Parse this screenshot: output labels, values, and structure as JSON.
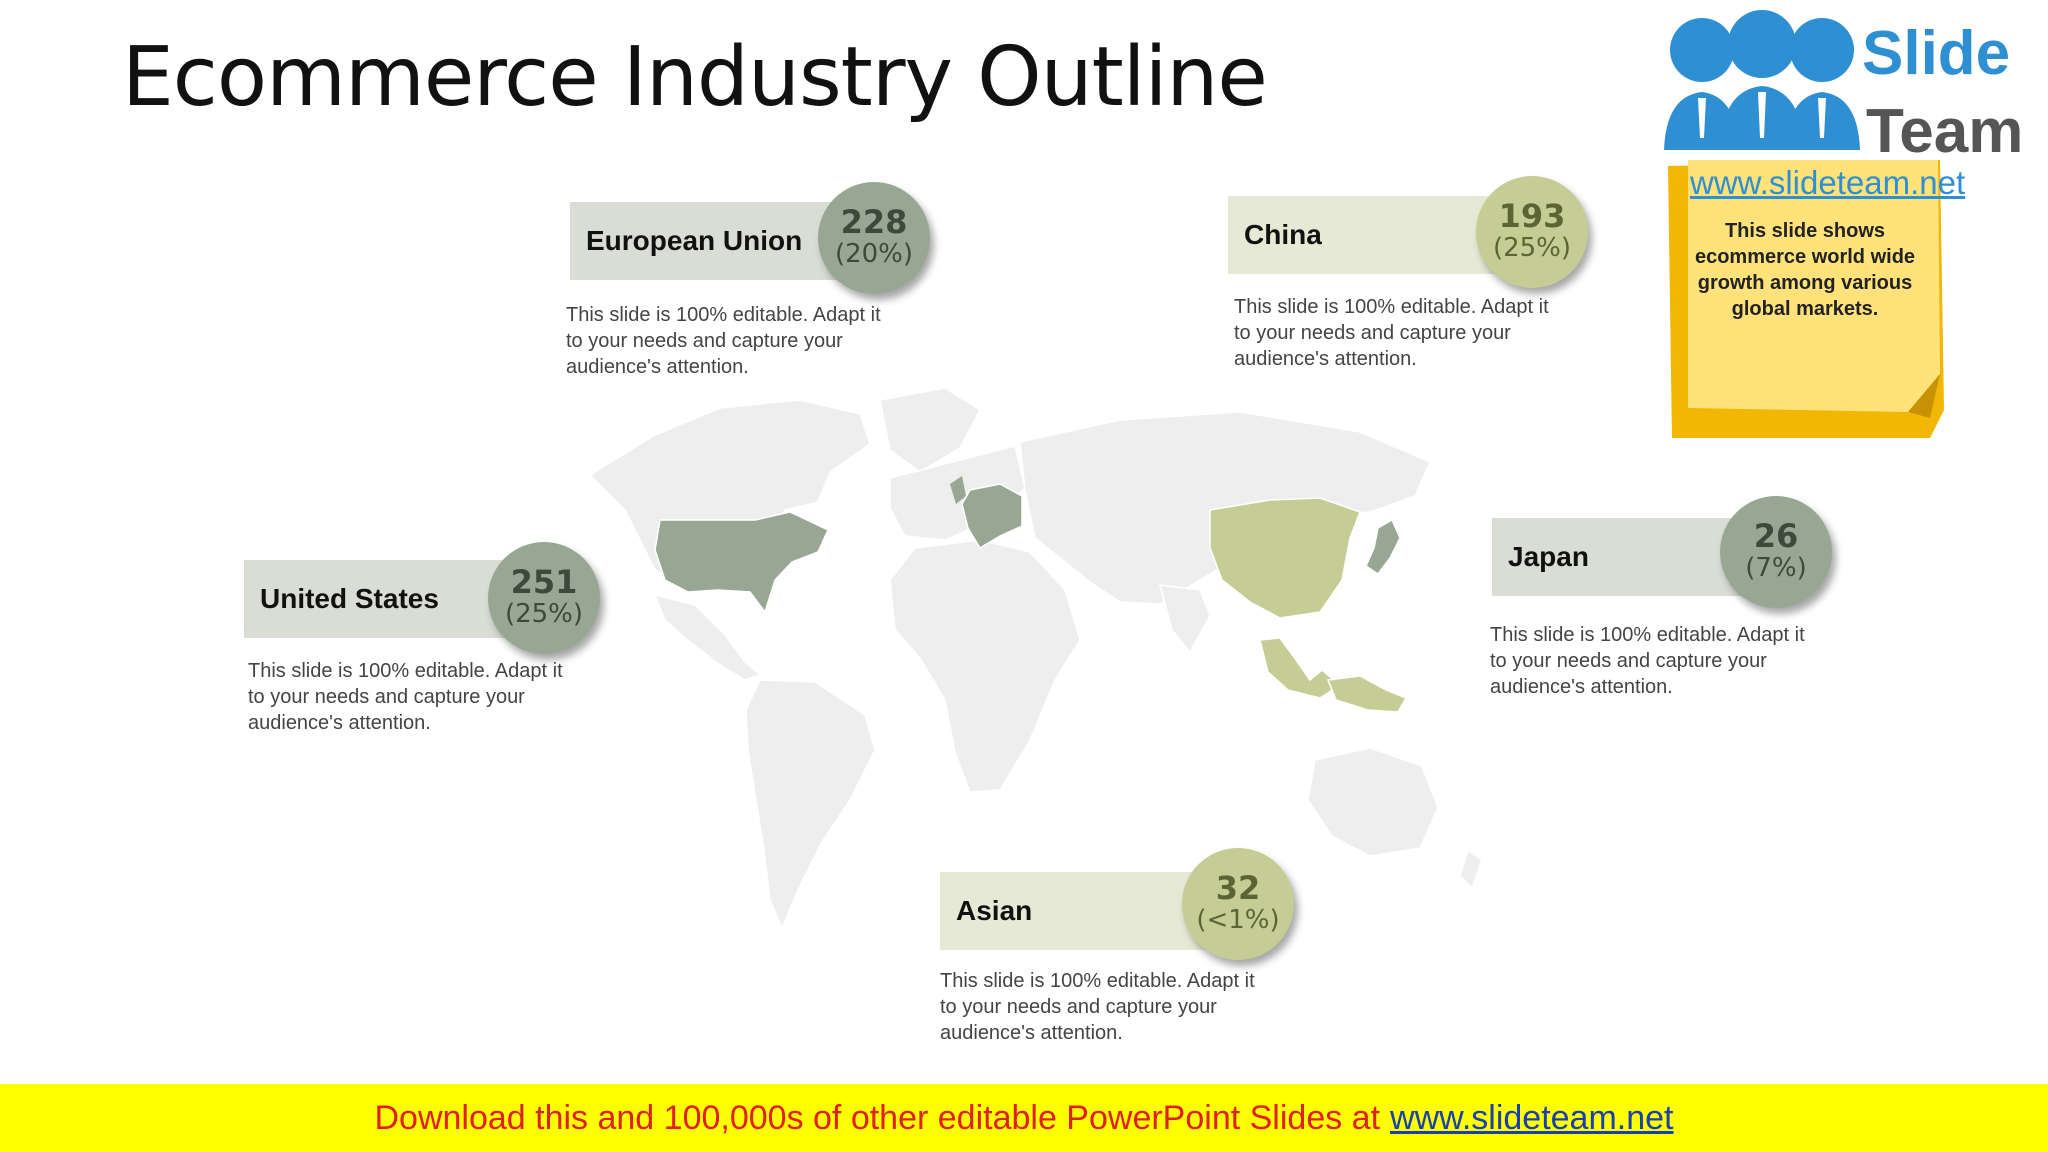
{
  "title": "Ecommerce Industry Outline",
  "callouts": [
    {
      "label": "European Union",
      "value": "228",
      "pct": "(20%)",
      "desc": "This slide is 100% editable. Adapt it to your needs and capture your audience's attention.",
      "theme": "grey"
    },
    {
      "label": "China",
      "value": "193",
      "pct": "(25%)",
      "desc": "This slide is 100% editable. Adapt it to your needs and capture your audience's attention.",
      "theme": "green"
    },
    {
      "label": "United States",
      "value": "251",
      "pct": "(25%)",
      "desc": "This slide is 100% editable. Adapt it to your needs and capture your audience's attention.",
      "theme": "grey"
    },
    {
      "label": "Japan",
      "value": "26",
      "pct": "(7%)",
      "desc": "This slide is 100% editable. Adapt it to your needs and capture your audience's attention.",
      "theme": "grey"
    },
    {
      "label": "Asian",
      "value": "32",
      "pct": "(<1%)",
      "desc": "This slide is 100% editable. Adapt it to your needs and capture your audience's attention.",
      "theme": "green"
    }
  ],
  "logo": {
    "line1": "Slide",
    "line2": "Team",
    "url": "www.slideteam.net"
  },
  "note": "This slide shows ecommerce world wide growth among various global markets.",
  "banner": {
    "text": "Download this and 100,000s of other editable PowerPoint Slides at",
    "link": "www.slideteam.net"
  },
  "colors": {
    "grey_accent": "#98a794",
    "green_accent": "#c5cd95",
    "map_base": "#eeeeee",
    "banner_bg": "#ffff00",
    "banner_text": "#e02020"
  }
}
